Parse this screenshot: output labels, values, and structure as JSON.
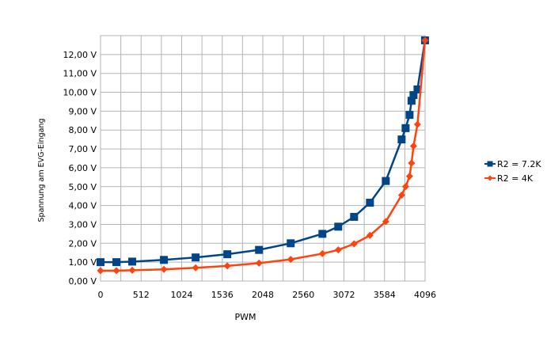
{
  "chart_data": {
    "type": "line",
    "title": "",
    "xlabel": "PWM",
    "ylabel": "Spannung am EVG-Eingang",
    "xlim": [
      0,
      4096
    ],
    "ylim": [
      0,
      13
    ],
    "xticks": [
      "0",
      "512",
      "1024",
      "1536",
      "2048",
      "2560",
      "3072",
      "3584",
      "4096"
    ],
    "yticks": [
      "0,00 V",
      "1,00 V",
      "2,00 V",
      "3,00 V",
      "4,00 V",
      "5,00 V",
      "6,00 V",
      "7,00 V",
      "8,00 V",
      "9,00 V",
      "10,00 V",
      "11,00 V",
      "12,00 V"
    ],
    "grid": true,
    "legend_position": "right",
    "x": [
      0,
      200,
      400,
      800,
      1200,
      1600,
      2000,
      2400,
      2800,
      3000,
      3200,
      3400,
      3600,
      3800,
      3850,
      3900,
      3925,
      3950,
      4000,
      4095
    ],
    "series": [
      {
        "name": "R2 = 7.2K",
        "color": "#004586",
        "marker": "square",
        "values": [
          1.0,
          1.0,
          1.03,
          1.12,
          1.25,
          1.42,
          1.65,
          2.0,
          2.5,
          2.88,
          3.4,
          4.15,
          5.3,
          7.5,
          8.1,
          8.8,
          9.55,
          9.85,
          10.15,
          12.75
        ]
      },
      {
        "name": "R2 = 4K",
        "color": "#ff420e",
        "marker": "diamond",
        "values": [
          0.55,
          0.55,
          0.57,
          0.62,
          0.7,
          0.8,
          0.95,
          1.15,
          1.45,
          1.65,
          1.97,
          2.42,
          3.15,
          4.55,
          5.0,
          5.55,
          6.25,
          7.15,
          8.3,
          12.75
        ]
      }
    ]
  }
}
